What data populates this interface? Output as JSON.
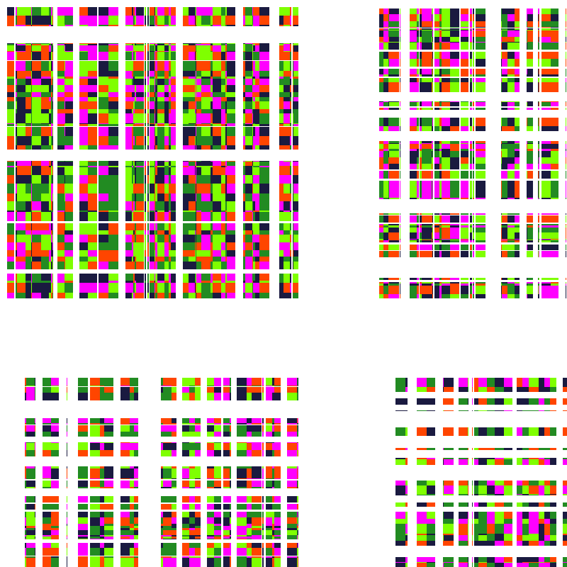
{
  "panels": [
    {
      "id": "top-left",
      "colors": [
        "#ff00ff",
        "#00ffff",
        "#7fff00",
        "#0000ff",
        "#ff4500",
        "#000000",
        "#228b22",
        "#ffa500",
        "#1a1a40",
        "#ff1493"
      ]
    },
    {
      "id": "top-right",
      "colors": [
        "#ff00ff",
        "#00ffff",
        "#7fff00",
        "#0000ff",
        "#ff4500",
        "#000000",
        "#228b22",
        "#ffa500",
        "#1a1a40",
        "#ff1493"
      ]
    },
    {
      "id": "bottom-left",
      "colors": [
        "#ff00ff",
        "#00ffff",
        "#7fff00",
        "#0000ff",
        "#ff4500",
        "#000000",
        "#228b22",
        "#ffa500",
        "#1a1a40",
        "#ff1493"
      ]
    },
    {
      "id": "bottom-right",
      "colors": [
        "#ff00ff",
        "#00ffff",
        "#7fff00",
        "#0000ff",
        "#ff4500",
        "#000000",
        "#228b22",
        "#ffa500",
        "#1a1a40",
        "#ff1493"
      ]
    }
  ],
  "background": "#ffffff"
}
